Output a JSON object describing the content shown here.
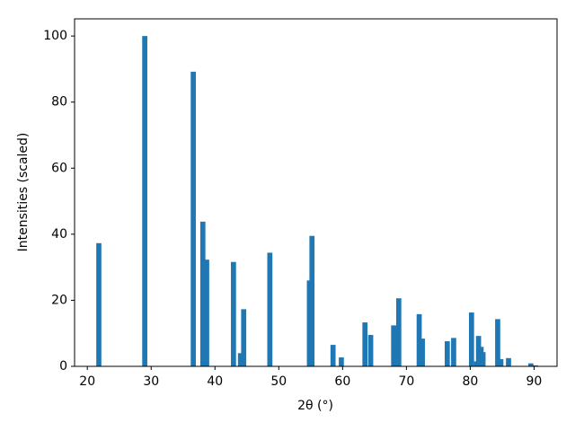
{
  "chart_data": {
    "type": "bar",
    "x_label": "2θ (°)",
    "y_label": "Intensities (scaled)",
    "x": [
      21.8,
      29.0,
      36.6,
      38.1,
      38.7,
      42.9,
      44.0,
      44.5,
      48.6,
      54.8,
      55.2,
      58.5,
      59.8,
      63.5,
      64.4,
      68.0,
      68.3,
      68.8,
      72.0,
      72.5,
      76.4,
      77.4,
      80.2,
      81.0,
      81.3,
      81.7,
      82.0,
      84.3,
      84.8,
      86.0,
      89.5,
      90.2
    ],
    "values": [
      37.3,
      100,
      89.2,
      43.8,
      32.3,
      31.6,
      4,
      17.3,
      34.4,
      26,
      39.5,
      6.5,
      2.7,
      13.3,
      9.5,
      12.4,
      5.5,
      20.6,
      15.8,
      8.4,
      7.6,
      8.6,
      16.3,
      1.5,
      9.2,
      5.9,
      4.3,
      14.3,
      2.2,
      2.5,
      0.9,
      0.3
    ],
    "bar_width": 0.8,
    "color": "#1f77b4",
    "xlim": [
      18,
      93.6
    ],
    "xticks": [
      20,
      30,
      40,
      50,
      60,
      70,
      80,
      90
    ],
    "ylim": [
      0,
      105.2
    ],
    "yticks": [
      0,
      20,
      40,
      60,
      80,
      100
    ],
    "grid": false
  }
}
